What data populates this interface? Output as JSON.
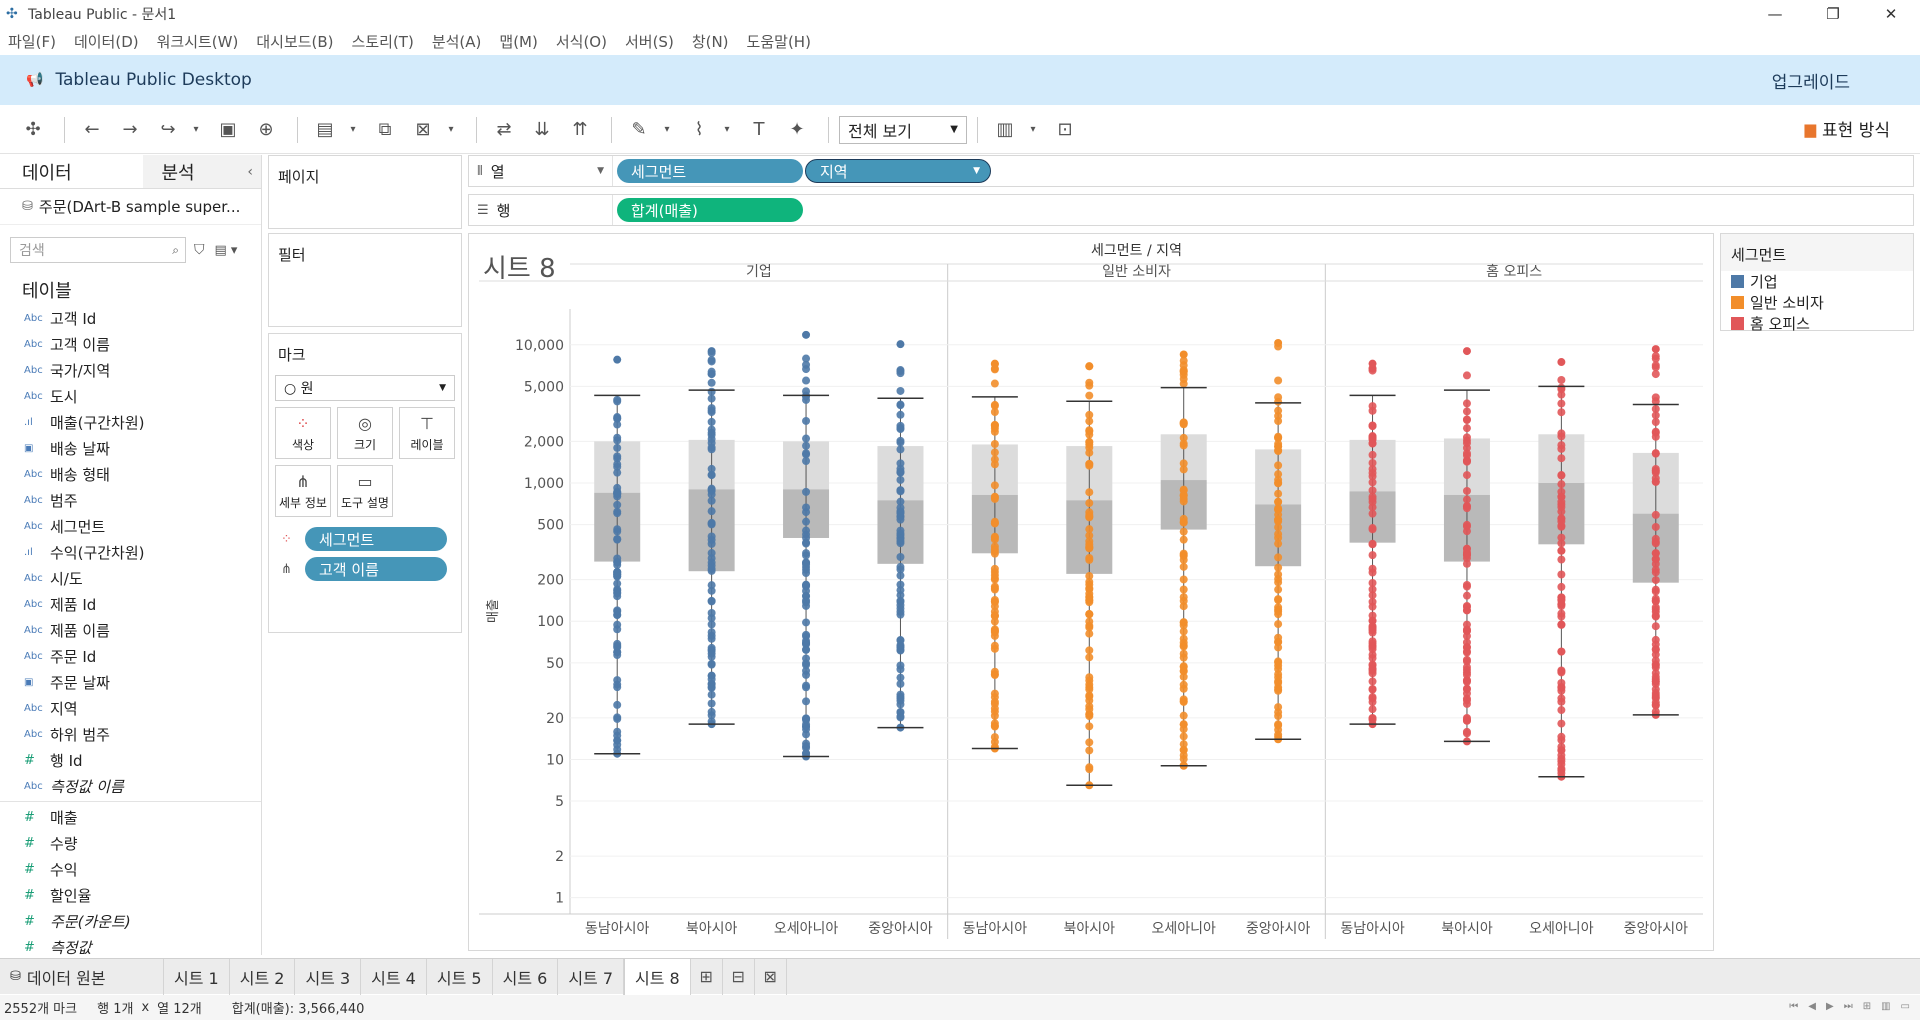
{
  "window": {
    "title": "Tableau Public - 문서1",
    "controls": [
      "—",
      "❐",
      "✕"
    ]
  },
  "menu": [
    "파일(F)",
    "데이터(D)",
    "워크시트(W)",
    "대시보드(B)",
    "스토리(T)",
    "분석(A)",
    "맵(M)",
    "서식(O)",
    "서버(S)",
    "창(N)",
    "도움말(H)"
  ],
  "banner": {
    "title": "Tableau Public Desktop",
    "upgrade": "업그레이드"
  },
  "toolbar": {
    "view_select": "전체 보기",
    "show_me": "표현 방식"
  },
  "datapane": {
    "tab_data": "데이터",
    "tab_analysis": "분석",
    "datasource": "주문(DArt-B sample super...",
    "search_placeholder": "검색",
    "tables_heading": "테이블",
    "dimensions": [
      {
        "type": "Abc",
        "name": "고객 Id"
      },
      {
        "type": "Abc",
        "name": "고객 이름"
      },
      {
        "type": "Abc",
        "name": "국가/지역"
      },
      {
        "type": "Abc",
        "name": "도시"
      },
      {
        "type": "bin",
        "name": "매출(구간차원)"
      },
      {
        "type": "date",
        "name": "배송 날짜"
      },
      {
        "type": "Abc",
        "name": "배송 형태"
      },
      {
        "type": "Abc",
        "name": "범주"
      },
      {
        "type": "Abc",
        "name": "세그먼트"
      },
      {
        "type": "bin",
        "name": "수익(구간차원)"
      },
      {
        "type": "Abc",
        "name": "시/도"
      },
      {
        "type": "Abc",
        "name": "제품 Id"
      },
      {
        "type": "Abc",
        "name": "제품 이름"
      },
      {
        "type": "Abc",
        "name": "주문 Id"
      },
      {
        "type": "date",
        "name": "주문 날짜"
      },
      {
        "type": "Abc",
        "name": "지역"
      },
      {
        "type": "Abc",
        "name": "하위 범주"
      },
      {
        "type": "#",
        "name": "행 Id"
      },
      {
        "type": "Abc",
        "name": "측정값 이름",
        "italic": true
      }
    ],
    "measures": [
      {
        "type": "#",
        "name": "매출"
      },
      {
        "type": "#",
        "name": "수량"
      },
      {
        "type": "#",
        "name": "수익"
      },
      {
        "type": "#",
        "name": "할인율"
      },
      {
        "type": "#",
        "name": "주문(카운트)",
        "italic": true
      },
      {
        "type": "#",
        "name": "측정값",
        "italic": true
      }
    ]
  },
  "cards": {
    "pages": "페이지",
    "filters": "필터",
    "marks": "마크",
    "mark_type": "○ 원",
    "buttons": [
      {
        "icon": "color",
        "label": "색상"
      },
      {
        "icon": "size",
        "label": "크기"
      },
      {
        "icon": "label",
        "label": "레이블"
      },
      {
        "icon": "detail",
        "label": "세부 정보"
      },
      {
        "icon": "tooltip",
        "label": "도구 설명"
      }
    ],
    "mark_pills": [
      "세그먼트",
      "고객 이름"
    ]
  },
  "shelves": {
    "columns_label": "열",
    "rows_label": "행",
    "columns_pills": [
      "세그먼트",
      "지역"
    ],
    "rows_pills": [
      "합계(매출)"
    ]
  },
  "legend": {
    "title": "세그먼트",
    "items": [
      {
        "label": "기업",
        "color": "#4e79a7"
      },
      {
        "label": "일반 소비자",
        "color": "#f28e2b"
      },
      {
        "label": "홈 오피스",
        "color": "#e15759"
      }
    ]
  },
  "sheet_title": "시트 8",
  "chart_data": {
    "type": "box-and-whisker",
    "header": "세그먼트 / 지역",
    "segments": [
      "기업",
      "일반 소비자",
      "홈 오피스"
    ],
    "regions": [
      "동남아시아",
      "북아시아",
      "오세아니아",
      "중앙아시아"
    ],
    "ylabel": "매출",
    "yscale": "log",
    "ylim": [
      0.9,
      13000
    ],
    "yticks": [
      1,
      2,
      5,
      10,
      20,
      50,
      100,
      200,
      500,
      1000,
      2000,
      5000,
      10000
    ],
    "ytick_labels": [
      "1",
      "2",
      "5",
      "10",
      "20",
      "50",
      "100",
      "200",
      "500",
      "1,000",
      "2,000",
      "5,000",
      "10,000"
    ],
    "boxes": [
      {
        "segment": "기업",
        "region": "동남아시아",
        "whisker_low": 11,
        "q1": 270,
        "median": 850,
        "q3": 2000,
        "whisker_high": 4300,
        "max": 7800
      },
      {
        "segment": "기업",
        "region": "북아시아",
        "whisker_low": 18,
        "q1": 230,
        "median": 900,
        "q3": 2050,
        "whisker_high": 4700,
        "max": 9000
      },
      {
        "segment": "기업",
        "region": "오세아니아",
        "whisker_low": 10.5,
        "q1": 400,
        "median": 900,
        "q3": 2000,
        "whisker_high": 4300,
        "max": 11800
      },
      {
        "segment": "기업",
        "region": "중앙아시아",
        "whisker_low": 17,
        "q1": 260,
        "median": 750,
        "q3": 1850,
        "whisker_high": 4100,
        "max": 10100
      },
      {
        "segment": "일반 소비자",
        "region": "동남아시아",
        "whisker_low": 12,
        "q1": 310,
        "median": 820,
        "q3": 1900,
        "whisker_high": 4200,
        "max": 7300
      },
      {
        "segment": "일반 소비자",
        "region": "북아시아",
        "whisker_low": 6.5,
        "q1": 220,
        "median": 750,
        "q3": 1850,
        "whisker_high": 3900,
        "max": 7000
      },
      {
        "segment": "일반 소비자",
        "region": "오세아니아",
        "whisker_low": 9,
        "q1": 460,
        "median": 1050,
        "q3": 2250,
        "whisker_high": 4900,
        "max": 8500
      },
      {
        "segment": "일반 소비자",
        "region": "중앙아시아",
        "whisker_low": 14,
        "q1": 250,
        "median": 700,
        "q3": 1750,
        "whisker_high": 3800,
        "max": 10300
      },
      {
        "segment": "홈 오피스",
        "region": "동남아시아",
        "whisker_low": 18,
        "q1": 370,
        "median": 870,
        "q3": 2050,
        "whisker_high": 4300,
        "max": 7300
      },
      {
        "segment": "홈 오피스",
        "region": "북아시아",
        "whisker_low": 13.5,
        "q1": 270,
        "median": 820,
        "q3": 2100,
        "whisker_high": 4700,
        "max": 9000
      },
      {
        "segment": "홈 오피스",
        "region": "오세아니아",
        "whisker_low": 7.5,
        "q1": 360,
        "median": 1000,
        "q3": 2250,
        "whisker_high": 5000,
        "max": 7500
      },
      {
        "segment": "홈 오피스",
        "region": "중앙아시아",
        "whisker_low": 21,
        "q1": 190,
        "median": 600,
        "q3": 1650,
        "whisker_high": 3700,
        "max": 9300
      }
    ],
    "grid": true,
    "legend_position": "right"
  },
  "tabs": {
    "datasource": "데이터 원본",
    "sheets": [
      "시트 1",
      "시트 2",
      "시트 3",
      "시트 4",
      "시트 5",
      "시트 6",
      "시트 7",
      "시트 8"
    ],
    "active": "시트 8"
  },
  "status": {
    "marks": "2552개 마크",
    "rows": "행 1개",
    "x": "x",
    "cols": "열 12개",
    "sum": "합계(매출): 3,566,440"
  }
}
